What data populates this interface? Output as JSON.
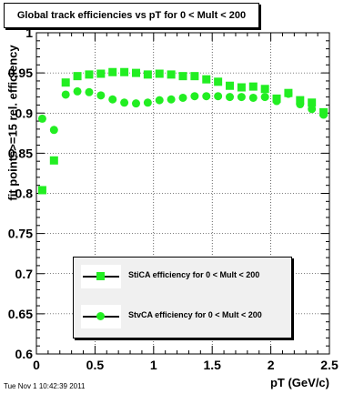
{
  "chart_data": {
    "type": "scatter",
    "title": "Global track efficiencies vs pT for 0 < Mult < 200",
    "xlabel": "pT (GeV/c)",
    "ylabel": "fit points>=15 rel. efficiency",
    "xlim": [
      0,
      2.5
    ],
    "ylim": [
      0.6,
      1.0
    ],
    "x_ticks": [
      "0",
      "0.5",
      "1",
      "1.5",
      "2",
      "2.5"
    ],
    "y_ticks": [
      "0.6",
      "0.65",
      "0.7",
      "0.75",
      "0.8",
      "0.85",
      "0.9",
      "0.95",
      "1"
    ],
    "grid": true,
    "legend_position": "bottom-center",
    "series": [
      {
        "name": "StiCA efficiency for 0 < Mult < 200",
        "marker": "square",
        "color": "#22ee22",
        "x": [
          0.05,
          0.15,
          0.25,
          0.35,
          0.45,
          0.55,
          0.65,
          0.75,
          0.85,
          0.95,
          1.05,
          1.15,
          1.25,
          1.35,
          1.45,
          1.55,
          1.65,
          1.75,
          1.85,
          1.95,
          2.05,
          2.15,
          2.25,
          2.35,
          2.45
        ],
        "y": [
          0.804,
          0.841,
          0.938,
          0.946,
          0.948,
          0.949,
          0.951,
          0.951,
          0.95,
          0.948,
          0.949,
          0.948,
          0.946,
          0.946,
          0.942,
          0.939,
          0.934,
          0.932,
          0.933,
          0.93,
          0.918,
          0.925,
          0.916,
          0.913,
          0.901
        ]
      },
      {
        "name": "StvCA efficiency for 0 < Mult < 200",
        "marker": "circle",
        "color": "#22ee22",
        "x": [
          0.05,
          0.15,
          0.25,
          0.35,
          0.45,
          0.55,
          0.65,
          0.75,
          0.85,
          0.95,
          1.05,
          1.15,
          1.25,
          1.35,
          1.45,
          1.55,
          1.65,
          1.75,
          1.85,
          1.95,
          2.05,
          2.15,
          2.25,
          2.35,
          2.45
        ],
        "y": [
          0.893,
          0.879,
          0.923,
          0.927,
          0.926,
          0.922,
          0.917,
          0.913,
          0.912,
          0.913,
          0.916,
          0.917,
          0.919,
          0.921,
          0.921,
          0.921,
          0.92,
          0.92,
          0.919,
          0.92,
          0.915,
          0.924,
          0.911,
          0.905,
          0.898
        ]
      }
    ]
  },
  "footer": {
    "timestamp": "Tue Nov  1 10:42:39 2011"
  }
}
